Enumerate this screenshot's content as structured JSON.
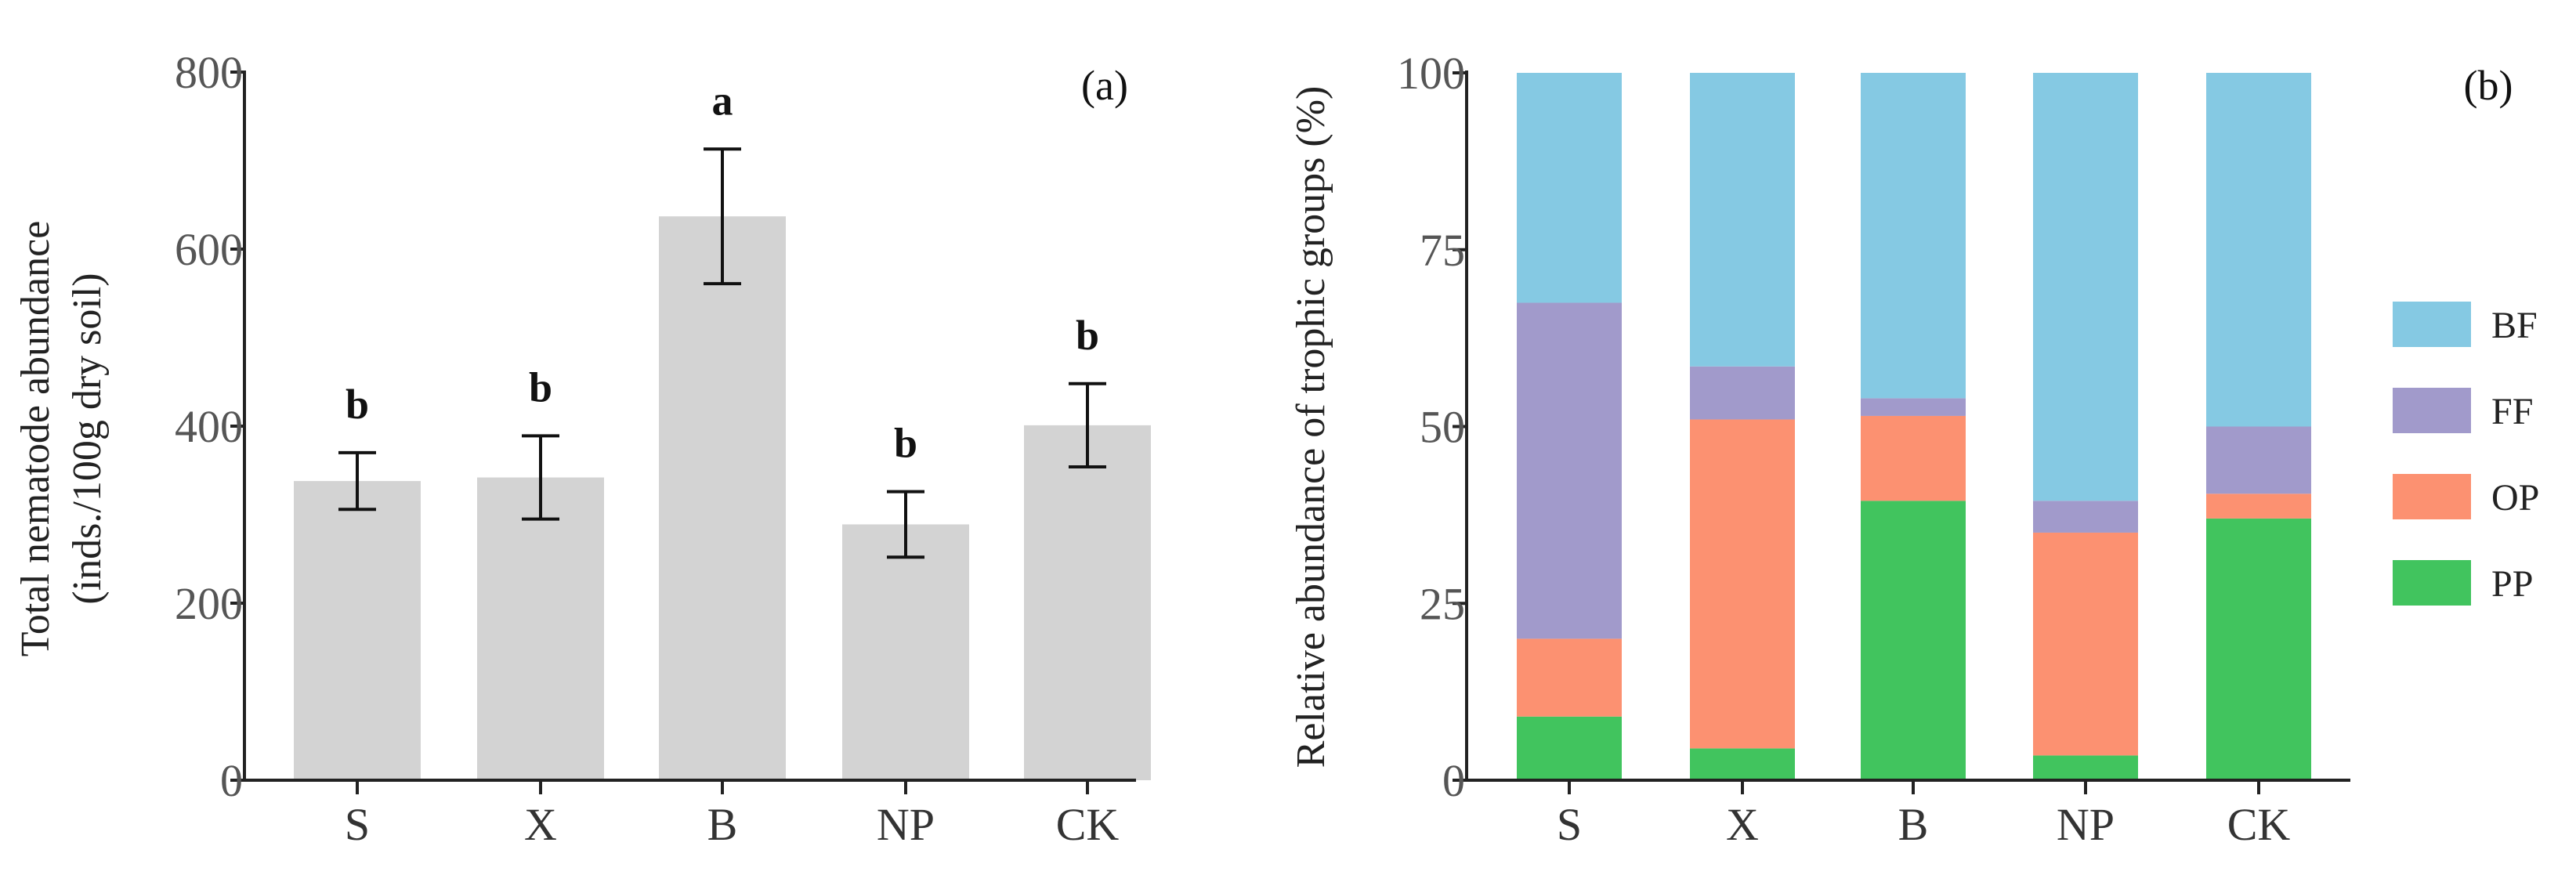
{
  "chart_data": [
    {
      "panel": "(a)",
      "type": "bar",
      "categories": [
        "S",
        "X",
        "B",
        "NP",
        "CK"
      ],
      "values": [
        338,
        342,
        637,
        289,
        401
      ],
      "errors": [
        32,
        47,
        76,
        37,
        47
      ],
      "significance": [
        "b",
        "b",
        "a",
        "b",
        "b"
      ],
      "ylabel": [
        "Total nematode abundance",
        "(inds./100g dry soil)"
      ],
      "xlabel": "",
      "ylim": [
        0,
        800
      ],
      "yticks": [
        "0",
        "200",
        "400",
        "600",
        "800"
      ],
      "ytick_values": [
        0,
        200,
        400,
        600,
        800
      ],
      "bar_color": "#d3d3d3"
    },
    {
      "panel": "(b)",
      "type": "stacked-bar",
      "categories": [
        "S",
        "X",
        "B",
        "NP",
        "CK"
      ],
      "series": [
        {
          "name": "PP",
          "values": [
            9,
            4.5,
            39.5,
            3.5,
            37
          ],
          "color": "#41c45e"
        },
        {
          "name": "OP",
          "values": [
            11,
            46.5,
            12,
            31.5,
            3.5
          ],
          "color": "#fc9171"
        },
        {
          "name": "FF",
          "values": [
            47.5,
            7.5,
            2.5,
            4.5,
            9.5
          ],
          "color": "#a19acb"
        },
        {
          "name": "BF",
          "values": [
            32.5,
            41.5,
            46,
            60.5,
            50
          ],
          "color": "#85c9e3"
        }
      ],
      "legend_order": [
        "BF",
        "FF",
        "OP",
        "PP"
      ],
      "ylabel": "Relative abundance of trophic groups (%)",
      "xlabel": "",
      "ylim": [
        0,
        100
      ],
      "yticks": [
        "0",
        "25",
        "50",
        "75",
        "100"
      ],
      "ytick_values": [
        0,
        25,
        50,
        75,
        100
      ]
    }
  ]
}
